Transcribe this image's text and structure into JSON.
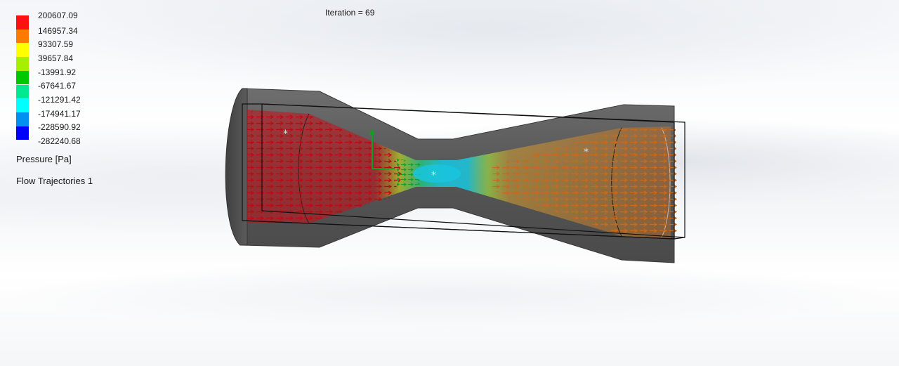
{
  "iteration": "Iteration = 69",
  "legend": {
    "title": "Pressure [Pa]",
    "ticks": [
      "200607.09",
      "146957.34",
      "93307.59",
      "39657.84",
      "-13991.92",
      "-67641.67",
      "-121291.42",
      "-174941.17",
      "-228590.92",
      "-282240.68"
    ],
    "band_colors": [
      "#ff1010",
      "#ff7a00",
      "#ffff00",
      "#a8ee00",
      "#00c800",
      "#00e890",
      "#00ffff",
      "#0090f0",
      "#0000ff"
    ]
  },
  "feature": "Flow Trajectories 1",
  "colors": {
    "inlet_arrows": "#c8101a",
    "outlet_arrows": "#d07020",
    "throat_fluid": "#1cc8d8",
    "body_gray": "#5a5a5a"
  }
}
